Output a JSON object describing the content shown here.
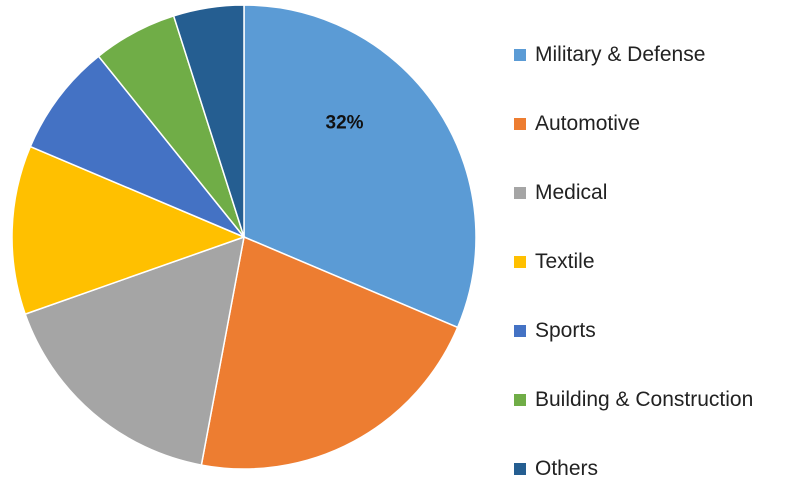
{
  "chart_data": {
    "type": "pie",
    "categories": [
      "Military & Defense",
      "Automotive",
      "Medical",
      "Textile",
      "Sports",
      "Building & Construction",
      "Others"
    ],
    "values": [
      32,
      22,
      17,
      12,
      8,
      6,
      5
    ],
    "colors": [
      "#5B9BD5",
      "#ED7D31",
      "#A5A5A5",
      "#FFC000",
      "#4472C4",
      "#70AD47",
      "#255E91"
    ],
    "data_labels": [
      "32%",
      "",
      "",
      "",
      "",
      "",
      ""
    ],
    "legend_position": "right",
    "start_angle": "12 o'clock",
    "direction": "clockwise"
  }
}
